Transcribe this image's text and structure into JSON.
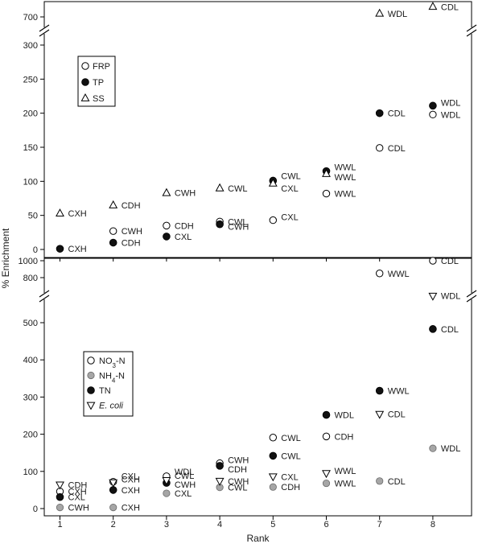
{
  "chart_data": [
    {
      "type": "scatter",
      "panel": "top",
      "title": "",
      "xlabel": "Rank",
      "ylabel": "% Enrichment",
      "xlim": [
        0.55,
        8.75
      ],
      "axis_break": {
        "lower_range": [
          -5,
          320
        ],
        "upper_range": [
          690,
          720
        ]
      },
      "yticks": [
        0,
        50,
        100,
        150,
        200,
        250,
        300,
        700
      ],
      "xticks": [
        1,
        2,
        3,
        4,
        5,
        6,
        7,
        8
      ],
      "legend": {
        "placement": "top-left",
        "entries": [
          "FRP",
          "TP",
          "SS"
        ]
      },
      "series": [
        {
          "name": "FRP",
          "marker": "open-circle",
          "points": [
            {
              "x": 2,
              "y": 27,
              "label": "CWH"
            },
            {
              "x": 3,
              "y": 35,
              "label": "CDH"
            },
            {
              "x": 4,
              "y": 41,
              "label": "CWL"
            },
            {
              "x": 5,
              "y": 43,
              "label": "CXL"
            },
            {
              "x": 6,
              "y": 82,
              "label": "WWL"
            },
            {
              "x": 7,
              "y": 149,
              "label": "CDL"
            },
            {
              "x": 8,
              "y": 198,
              "label": "WDL"
            }
          ]
        },
        {
          "name": "TP",
          "marker": "filled-circle",
          "points": [
            {
              "x": 1,
              "y": 1,
              "label": "CXH"
            },
            {
              "x": 2,
              "y": 10,
              "label": "CDH"
            },
            {
              "x": 3,
              "y": 19,
              "label": "CXL"
            },
            {
              "x": 4,
              "y": 37,
              "label": "CWH"
            },
            {
              "x": 5,
              "y": 101,
              "label": "CWL"
            },
            {
              "x": 6,
              "y": 115,
              "label": "WWL"
            },
            {
              "x": 7,
              "y": 200,
              "label": "CDL"
            },
            {
              "x": 8,
              "y": 211,
              "label": "WDL"
            }
          ]
        },
        {
          "name": "SS",
          "marker": "open-triangle",
          "points": [
            {
              "x": 1,
              "y": 53,
              "label": "CXH"
            },
            {
              "x": 2,
              "y": 65,
              "label": "CDH"
            },
            {
              "x": 3,
              "y": 83,
              "label": "CWH"
            },
            {
              "x": 4,
              "y": 90,
              "label": "CWL"
            },
            {
              "x": 5,
              "y": 97,
              "label": "CXL"
            },
            {
              "x": 6,
              "y": 111,
              "label": "WWL"
            },
            {
              "x": 7,
              "y": 705,
              "label": "WDL"
            },
            {
              "x": 8,
              "y": 715,
              "label": "CDL"
            }
          ]
        }
      ]
    },
    {
      "type": "scatter",
      "panel": "bottom",
      "title": "",
      "xlabel": "Rank",
      "ylabel": "% Enrichment",
      "xlim": [
        0.55,
        8.75
      ],
      "axis_break": {
        "lower_range": [
          -8,
          590
        ],
        "upper_range": [
          780,
          1020
        ]
      },
      "yticks": [
        0,
        100,
        200,
        300,
        400,
        500,
        800,
        1000
      ],
      "xticks": [
        1,
        2,
        3,
        4,
        5,
        6,
        7,
        8
      ],
      "legend": {
        "placement": "middle-left",
        "entries": [
          "NO3-N",
          "NH4-N",
          "TN",
          "E. coli"
        ]
      },
      "series": [
        {
          "name": "NO3-N",
          "marker": "open-circle",
          "points": [
            {
              "x": 1,
              "y": 46,
              "label": "CXH"
            },
            {
              "x": 2,
              "y": 72,
              "label": "CXH"
            },
            {
              "x": 3,
              "y": 87,
              "label": "WDL"
            },
            {
              "x": 4,
              "y": 122,
              "label": "CWH"
            },
            {
              "x": 5,
              "y": 191,
              "label": "CWL"
            },
            {
              "x": 6,
              "y": 194,
              "label": "CDH"
            },
            {
              "x": 7,
              "y": 850,
              "label": "WWL"
            },
            {
              "x": 8,
              "y": 1000,
              "label": "CDL"
            }
          ]
        },
        {
          "name": "NH4-N",
          "marker": "grey-circle",
          "points": [
            {
              "x": 1,
              "y": 3,
              "label": "CWH"
            },
            {
              "x": 2,
              "y": 3,
              "label": "CXH"
            },
            {
              "x": 3,
              "y": 41,
              "label": "CXL"
            },
            {
              "x": 4,
              "y": 57,
              "label": "CWL"
            },
            {
              "x": 5,
              "y": 58,
              "label": "CDH"
            },
            {
              "x": 6,
              "y": 68,
              "label": "WWL"
            },
            {
              "x": 7,
              "y": 74,
              "label": "CDL"
            },
            {
              "x": 8,
              "y": 162,
              "label": "WDL"
            }
          ]
        },
        {
          "name": "TN",
          "marker": "filled-circle",
          "points": [
            {
              "x": 1,
              "y": 31,
              "label": "CXL"
            },
            {
              "x": 2,
              "y": 50,
              "label": "CXH"
            },
            {
              "x": 3,
              "y": 69,
              "label": "CWH"
            },
            {
              "x": 4,
              "y": 115,
              "label": "CDH"
            },
            {
              "x": 5,
              "y": 142,
              "label": "CWL"
            },
            {
              "x": 6,
              "y": 252,
              "label": "WDL"
            },
            {
              "x": 7,
              "y": 317,
              "label": "WWL"
            },
            {
              "x": 8,
              "y": 483,
              "label": "CDL"
            }
          ]
        },
        {
          "name": "E. coli",
          "marker": "open-triangle-down",
          "points": [
            {
              "x": 1,
              "y": 64,
              "label": "CDH"
            },
            {
              "x": 2,
              "y": 70,
              "label": "CXL"
            },
            {
              "x": 3,
              "y": 76,
              "label": "CWL"
            },
            {
              "x": 4,
              "y": 74,
              "label": "CWH"
            },
            {
              "x": 5,
              "y": 86,
              "label": "CXL"
            },
            {
              "x": 6,
              "y": 95,
              "label": "WWL"
            },
            {
              "x": 7,
              "y": 254,
              "label": "CDL"
            },
            {
              "x": 8,
              "y": 572,
              "label": "WDL"
            }
          ]
        }
      ]
    }
  ]
}
